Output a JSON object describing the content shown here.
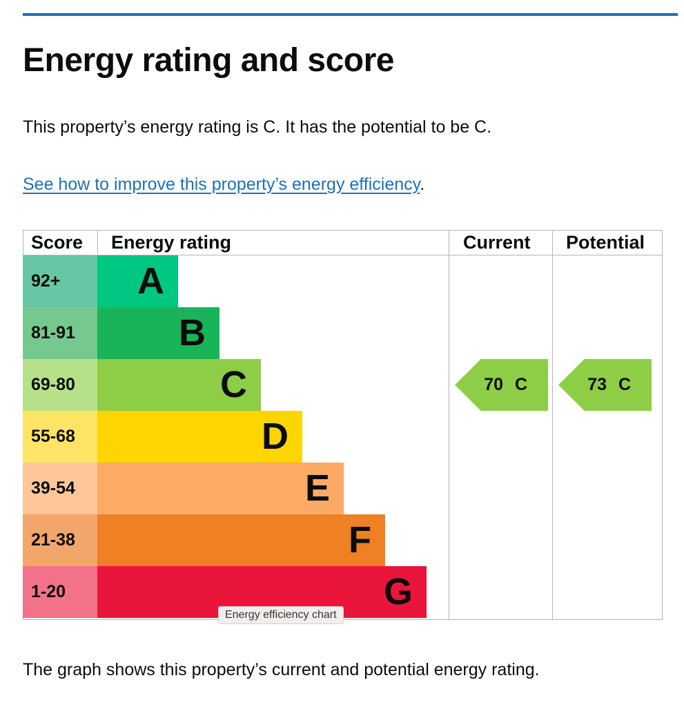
{
  "heading": "Energy rating and score",
  "intro": "This property’s energy rating is C. It has the potential to be C.",
  "improve_link": {
    "text": "See how to improve this property’s energy efficiency",
    "suffix": "."
  },
  "chart": {
    "headers": {
      "score": "Score",
      "rating": "Energy rating",
      "current": "Current",
      "potential": "Potential"
    },
    "bands": [
      {
        "score": "92+",
        "letter": "A",
        "band_color": "#00c781",
        "score_bg": "#67c7a4"
      },
      {
        "score": "81-91",
        "letter": "B",
        "band_color": "#19b459",
        "score_bg": "#75c98f"
      },
      {
        "score": "69-80",
        "letter": "C",
        "band_color": "#8dce46",
        "score_bg": "#b7e189"
      },
      {
        "score": "55-68",
        "letter": "D",
        "band_color": "#ffd500",
        "score_bg": "#ffe466"
      },
      {
        "score": "39-54",
        "letter": "E",
        "band_color": "#fcaa65",
        "score_bg": "#fdc79a"
      },
      {
        "score": "21-38",
        "letter": "F",
        "band_color": "#ef8023",
        "score_bg": "#f3a66b"
      },
      {
        "score": "1-20",
        "letter": "G",
        "band_color": "#e9153b",
        "score_bg": "#f27389"
      }
    ],
    "current": {
      "score": 70,
      "letter": "C",
      "label": "70 C",
      "color": "#8dce46"
    },
    "potential": {
      "score": 73,
      "letter": "C",
      "label": "73 C",
      "color": "#8dce46"
    }
  },
  "tooltip": "Energy efficiency chart",
  "footer": "The graph shows this property’s current and potential energy rating."
}
